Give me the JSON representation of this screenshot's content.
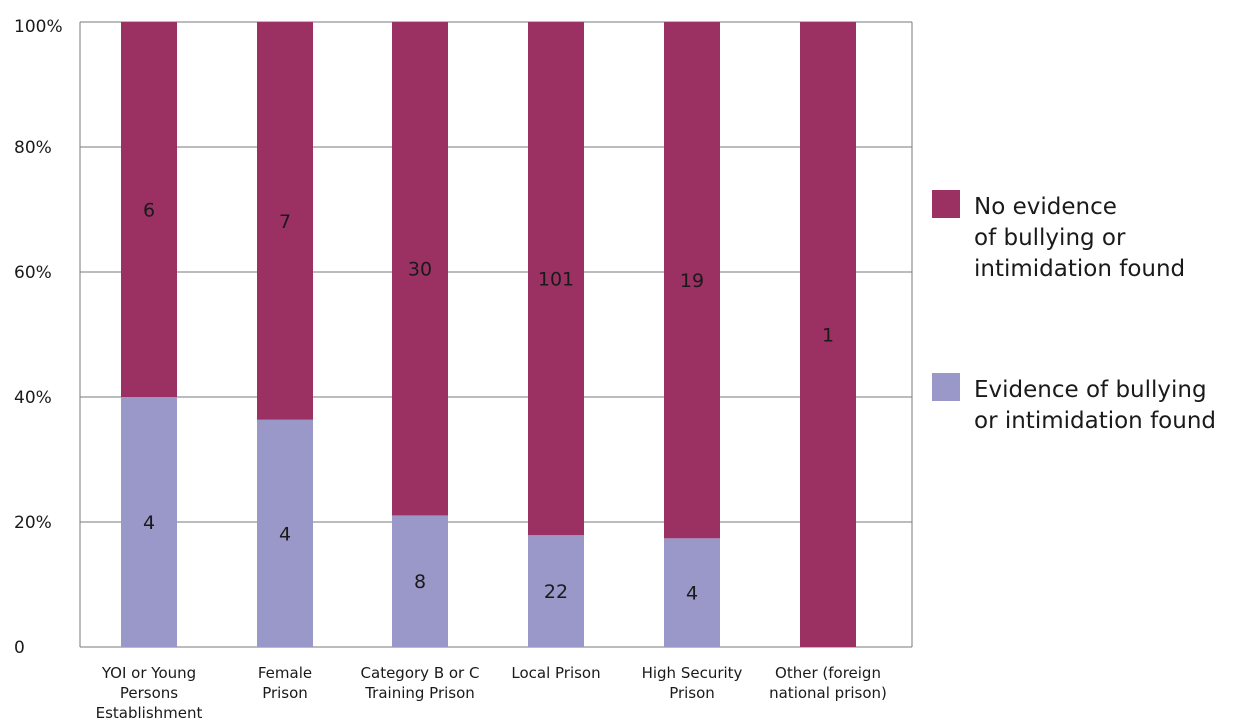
{
  "chart_data": {
    "type": "bar",
    "stacked": true,
    "normalized": true,
    "y_tick_labels": [
      "0",
      "20%",
      "40%",
      "60%",
      "80%",
      "100%"
    ],
    "ylim": [
      0,
      100
    ],
    "grid": true,
    "legend_placement": "right",
    "categories": [
      [
        "YOI or Young",
        "Persons",
        "Establishment"
      ],
      [
        "Female",
        "Prison"
      ],
      [
        "Category B or C",
        "Training Prison"
      ],
      [
        "Local Prison"
      ],
      [
        "High Security",
        "Prison"
      ],
      [
        "Other (foreign",
        "national prison)"
      ]
    ],
    "series": [
      {
        "name": "Evidence of bullying or intimidation found",
        "legend_lines": [
          "Evidence of bullying",
          "or intimidation found"
        ],
        "color": "#9a97c9",
        "values": [
          4,
          4,
          8,
          22,
          4,
          0
        ]
      },
      {
        "name": "No evidence of bullying or intimidation found",
        "legend_lines": [
          "No evidence",
          "of bullying or",
          "intimidation found"
        ],
        "color": "#9b3063",
        "values": [
          6,
          7,
          30,
          101,
          19,
          1
        ]
      }
    ]
  }
}
